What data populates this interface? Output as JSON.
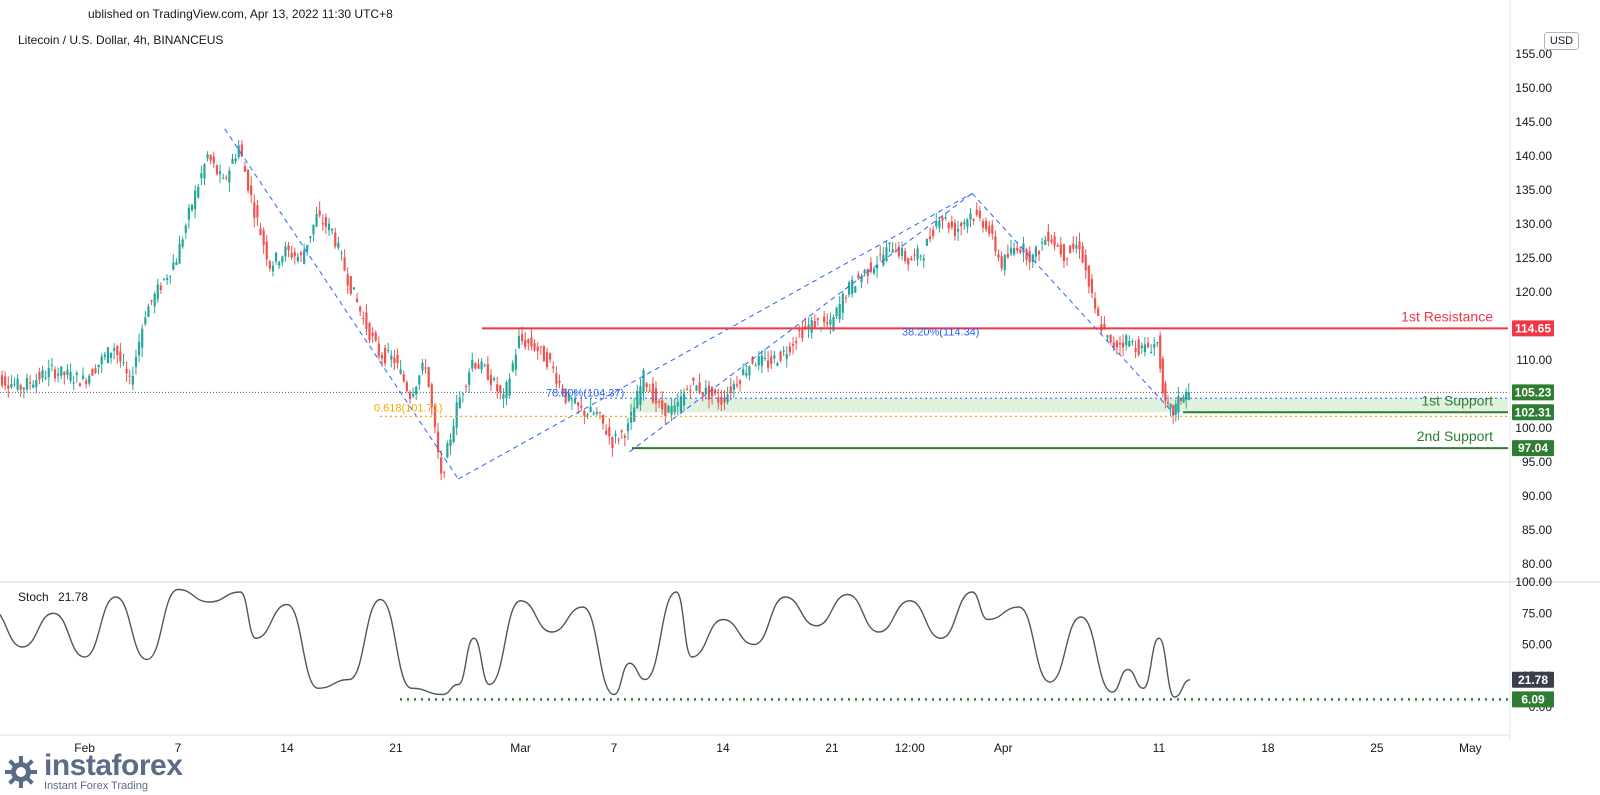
{
  "header": {
    "published": "ublished on TradingView.com, Apr 13, 2022 11:30 UTC+8",
    "symbol": "Litecoin / U.S. Dollar, 4h, BINANCEUS",
    "currency": "USD"
  },
  "branding": {
    "name": "instaforex",
    "tagline": "Instant Forex Trading"
  },
  "colors": {
    "up": "#26a69a",
    "down": "#ef5350",
    "resistance": "#f23645",
    "support": "#2e7d32",
    "fib_blue": "#2962ff",
    "fib_orange": "#f7a600",
    "stoch_line": "#555555",
    "zone_fill": "#d8efd5"
  },
  "chart_data": [
    {
      "type": "candlestick",
      "title": "Litecoin / U.S. Dollar, 4h, BINANCEUS",
      "y_axis": {
        "ticks": [
          155,
          150,
          145,
          140,
          135,
          130,
          125,
          120,
          115,
          110,
          105,
          100,
          95,
          90,
          85,
          80
        ],
        "tick_labels": [
          "155.00",
          "150.00",
          "145.00",
          "140.00",
          "135.00",
          "130.00",
          "125.00",
          "120.00",
          "115.00",
          "110.00",
          "105.00",
          "100.00",
          "95.00",
          "90.00",
          "85.00",
          "80.00"
        ],
        "range": [
          79,
          156
        ]
      },
      "x_axis": {
        "ticks": [
          "Feb",
          "7",
          "14",
          "21",
          "Mar",
          "7",
          "14",
          "21",
          "12:00",
          "Apr",
          "11",
          "18",
          "25",
          "May"
        ]
      },
      "price_path": [
        [
          "Jan 26",
          108
        ],
        [
          "Jan 28",
          106
        ],
        [
          "Jan 30",
          108.5
        ],
        [
          "Feb 1",
          107
        ],
        [
          "Feb 3",
          112
        ],
        [
          "Feb 4",
          106.5
        ],
        [
          "Feb 5",
          117
        ],
        [
          "Feb 7",
          125
        ],
        [
          "Feb 8",
          133
        ],
        [
          "Feb 9",
          140
        ],
        [
          "Feb 10",
          136
        ],
        [
          "Feb 11",
          141.5
        ],
        [
          "Feb 12",
          132
        ],
        [
          "Feb 13",
          124
        ],
        [
          "Feb 14",
          126
        ],
        [
          "Feb 15",
          125
        ],
        [
          "Feb 16",
          131
        ],
        [
          "Feb 17",
          129
        ],
        [
          "Feb 18",
          122
        ],
        [
          "Feb 19",
          116
        ],
        [
          "Feb 20",
          111
        ],
        [
          "Feb 21",
          110
        ],
        [
          "Feb 22",
          105
        ],
        [
          "Feb 23",
          109.5
        ],
        [
          "Feb 24",
          92.5
        ],
        [
          "Feb 25",
          103
        ],
        [
          "Feb 26",
          110
        ],
        [
          "Feb 27",
          108
        ],
        [
          "Feb 28",
          104
        ],
        [
          "Mar 1",
          113
        ],
        [
          "Mar 2",
          112
        ],
        [
          "Mar 3",
          109.5
        ],
        [
          "Mar 4",
          104.5
        ],
        [
          "Mar 5",
          102.5
        ],
        [
          "Mar 6",
          102
        ],
        [
          "Mar 7",
          98
        ],
        [
          "Mar 8",
          100
        ],
        [
          "Mar 9",
          107.5
        ],
        [
          "Mar 10",
          103
        ],
        [
          "Mar 11",
          102.5
        ],
        [
          "Mar 12",
          106.5
        ],
        [
          "Mar 14",
          104
        ],
        [
          "Mar 15",
          107
        ],
        [
          "Mar 16",
          110
        ],
        [
          "Mar 17",
          109.5
        ],
        [
          "Mar 18",
          111
        ],
        [
          "Mar 19",
          114
        ],
        [
          "Mar 20",
          115.5
        ],
        [
          "Mar 21",
          115
        ],
        [
          "Mar 22",
          120
        ],
        [
          "Mar 23",
          122.5
        ],
        [
          "Mar 24",
          124.5
        ],
        [
          "Mar 25",
          127
        ],
        [
          "Mar 26",
          124.5
        ],
        [
          "Mar 27",
          126
        ],
        [
          "Mar 28",
          131.5
        ],
        [
          "Mar 29",
          129
        ],
        [
          "Mar 30",
          131.5
        ],
        [
          "Mar 31",
          130
        ],
        [
          "Apr 1",
          124
        ],
        [
          "Apr 2",
          127
        ],
        [
          "Apr 3",
          125
        ],
        [
          "Apr 4",
          128.5
        ],
        [
          "Apr 5",
          125.5
        ],
        [
          "Apr 6",
          127
        ],
        [
          "Apr 7",
          117
        ],
        [
          "Apr 8",
          112
        ],
        [
          "Apr 9",
          113
        ],
        [
          "Apr 10",
          111.5
        ],
        [
          "Apr 11",
          112.5
        ],
        [
          "Apr 11 12:00",
          103
        ],
        [
          "Apr 12",
          102.3
        ],
        [
          "Apr 12 12:00",
          104.5
        ],
        [
          "Apr 13",
          105.2
        ]
      ],
      "levels": [
        {
          "name": "1st Resistance",
          "value": 114.65,
          "label": "114.65"
        },
        {
          "name": "1st Support",
          "value": 102.31,
          "label": "102.31"
        },
        {
          "name": "2nd Support",
          "value": 97.04,
          "label": "97.04"
        }
      ],
      "last_price": {
        "value": 105.23,
        "label": "105.23"
      },
      "fib_labels": [
        {
          "text": "38.20%(114.34)",
          "value": 114.34,
          "color": "blue"
        },
        {
          "text": "78.60%(104.37)",
          "value": 104.37,
          "color": "blue"
        },
        {
          "text": "0.618(101.71)",
          "value": 101.71,
          "color": "orange"
        }
      ],
      "trend_lines": [
        {
          "from": [
            "Feb 10",
            144
          ],
          "to": [
            "Feb 25",
            92.5
          ]
        },
        {
          "from": [
            "Feb 25",
            92.5
          ],
          "to": [
            "Mar 30",
            134.5
          ]
        },
        {
          "from": [
            "Mar 8",
            96.5
          ],
          "to": [
            "Mar 30",
            134.5
          ]
        },
        {
          "from": [
            "Mar 30",
            134.5
          ],
          "to": [
            "Apr 12",
            102
          ]
        }
      ],
      "support_zone": {
        "from": "Mar 8",
        "top": 104.37,
        "bottom": 102.31
      },
      "annotations": [
        "1st Resistance",
        "1st Support",
        "2nd Support"
      ]
    },
    {
      "type": "line",
      "title": "Stoch",
      "indicator_label": "Stoch",
      "current_value": 21.78,
      "current_label": "21.78",
      "y_axis": {
        "ticks": [
          100,
          75,
          50,
          25,
          0
        ],
        "tick_labels": [
          "100.00",
          "75.00",
          "50.00",
          "25.00",
          "0.00"
        ],
        "range": [
          -4,
          104
        ]
      },
      "level_line": {
        "value": 6.09,
        "label": "6.09"
      },
      "series": [
        {
          "x": "Jan 26",
          "y": 78
        },
        {
          "x": "Jan 28",
          "y": 48
        },
        {
          "x": "Jan 30",
          "y": 75
        },
        {
          "x": "Feb 1",
          "y": 40
        },
        {
          "x": "Feb 3",
          "y": 88
        },
        {
          "x": "Feb 5",
          "y": 38
        },
        {
          "x": "Feb 7",
          "y": 94
        },
        {
          "x": "Feb 9",
          "y": 84
        },
        {
          "x": "Feb 11",
          "y": 92
        },
        {
          "x": "Feb 12",
          "y": 55
        },
        {
          "x": "Feb 14",
          "y": 82
        },
        {
          "x": "Feb 16",
          "y": 15
        },
        {
          "x": "Feb 18",
          "y": 22
        },
        {
          "x": "Feb 20",
          "y": 86
        },
        {
          "x": "Feb 22",
          "y": 15
        },
        {
          "x": "Feb 24",
          "y": 10
        },
        {
          "x": "Feb 25",
          "y": 18
        },
        {
          "x": "Feb 26",
          "y": 55
        },
        {
          "x": "Feb 27",
          "y": 18
        },
        {
          "x": "Mar 1",
          "y": 85
        },
        {
          "x": "Mar 3",
          "y": 60
        },
        {
          "x": "Mar 5",
          "y": 80
        },
        {
          "x": "Mar 7",
          "y": 10
        },
        {
          "x": "Mar 8",
          "y": 35
        },
        {
          "x": "Mar 9",
          "y": 22
        },
        {
          "x": "Mar 11",
          "y": 92
        },
        {
          "x": "Mar 12",
          "y": 40
        },
        {
          "x": "Mar 14",
          "y": 70
        },
        {
          "x": "Mar 16",
          "y": 50
        },
        {
          "x": "Mar 18",
          "y": 88
        },
        {
          "x": "Mar 20",
          "y": 65
        },
        {
          "x": "Mar 22",
          "y": 90
        },
        {
          "x": "Mar 24",
          "y": 60
        },
        {
          "x": "Mar 26",
          "y": 85
        },
        {
          "x": "Mar 28",
          "y": 55
        },
        {
          "x": "Mar 30",
          "y": 92
        },
        {
          "x": "Mar 31",
          "y": 70
        },
        {
          "x": "Apr 2",
          "y": 80
        },
        {
          "x": "Apr 4",
          "y": 20
        },
        {
          "x": "Apr 6",
          "y": 72
        },
        {
          "x": "Apr 8",
          "y": 12
        },
        {
          "x": "Apr 9",
          "y": 30
        },
        {
          "x": "Apr 10",
          "y": 15
        },
        {
          "x": "Apr 11",
          "y": 55
        },
        {
          "x": "Apr 12",
          "y": 8
        },
        {
          "x": "Apr 13",
          "y": 21.78
        }
      ]
    }
  ]
}
